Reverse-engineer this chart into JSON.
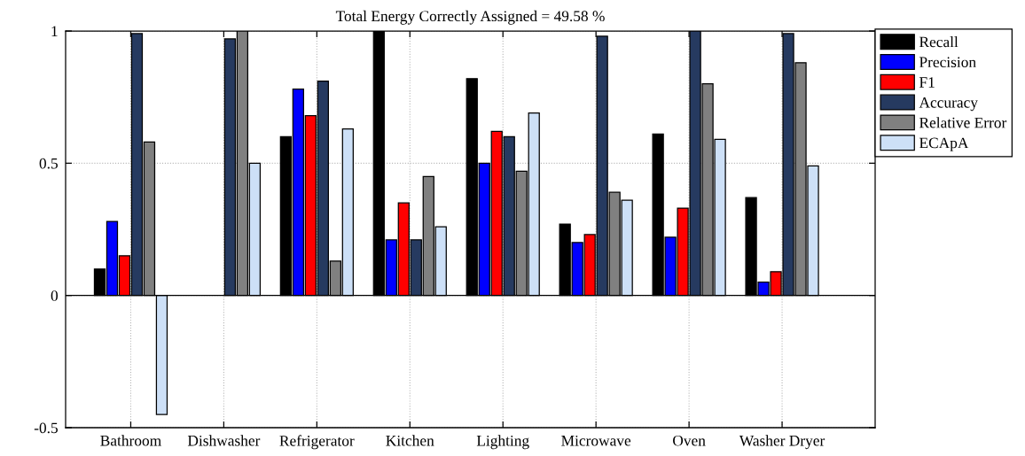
{
  "chart_data": {
    "type": "bar",
    "title": "Total Energy Correctly Assigned = 49.58 %",
    "categories": [
      "Bathroom",
      "Dishwasher",
      "Refrigerator",
      "Kitchen",
      "Lighting",
      "Microwave",
      "Oven",
      "Washer Dryer"
    ],
    "series": [
      {
        "name": "Recall",
        "color": "#000000",
        "values": [
          0.1,
          null,
          0.6,
          1.0,
          0.82,
          0.27,
          0.61,
          0.37
        ]
      },
      {
        "name": "Precision",
        "color": "#0000ff",
        "values": [
          0.28,
          null,
          0.78,
          0.21,
          0.5,
          0.2,
          0.22,
          0.05
        ]
      },
      {
        "name": "F1",
        "color": "#ff0000",
        "values": [
          0.15,
          null,
          0.68,
          0.35,
          0.62,
          0.23,
          0.33,
          0.09
        ]
      },
      {
        "name": "Accuracy",
        "color": "#263a60",
        "values": [
          0.99,
          0.97,
          0.81,
          0.21,
          0.6,
          0.98,
          1.0,
          0.99
        ]
      },
      {
        "name": "Relative Error",
        "color": "#808080",
        "values": [
          0.58,
          1.0,
          0.13,
          0.45,
          0.47,
          0.39,
          0.8,
          0.88
        ]
      },
      {
        "name": "ECApA",
        "color": "#cde0f7",
        "values": [
          -0.45,
          0.5,
          0.63,
          0.26,
          0.69,
          0.36,
          0.59,
          0.49
        ]
      }
    ],
    "ylim": [
      -0.5,
      1
    ],
    "yticks": [
      -0.5,
      0,
      0.5,
      1
    ],
    "grid": true,
    "legend": "top right",
    "ref_lines": [
      {
        "axis": "y",
        "value": 0,
        "color": "#000000"
      }
    ]
  }
}
